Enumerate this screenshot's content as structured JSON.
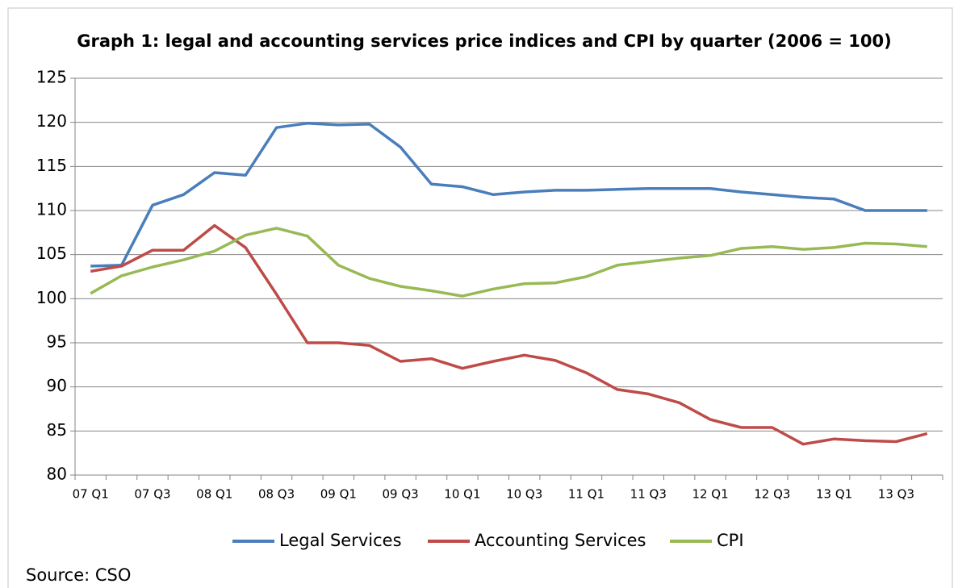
{
  "chart_data": {
    "type": "line",
    "title": "Graph 1: legal and accounting services price indices and CPI by quarter (2006 = 100)",
    "source": "Source: CSO",
    "categories": [
      "07 Q1",
      null,
      "07 Q3",
      null,
      "08 Q1",
      null,
      "08 Q3",
      null,
      "09 Q1",
      null,
      "09 Q3",
      null,
      "10 Q1",
      null,
      "10 Q3",
      null,
      "11 Q1",
      null,
      "11 Q3",
      null,
      "12 Q1",
      null,
      "12 Q3",
      null,
      "13 Q1",
      null,
      "13 Q3",
      null
    ],
    "series": [
      {
        "name": "Legal Services",
        "color": "#4a7ebb",
        "values": [
          103.7,
          103.8,
          110.6,
          111.8,
          114.3,
          114.0,
          119.4,
          119.9,
          119.7,
          119.8,
          117.2,
          113.0,
          112.7,
          111.8,
          112.1,
          112.3,
          112.3,
          112.4,
          112.5,
          112.5,
          112.5,
          112.1,
          111.8,
          111.5,
          111.3,
          110.0,
          110.0,
          110.0
        ]
      },
      {
        "name": "Accounting Services",
        "color": "#be4b48",
        "values": [
          103.1,
          103.7,
          105.5,
          105.5,
          108.3,
          105.8,
          100.5,
          95.0,
          95.0,
          94.7,
          92.9,
          93.2,
          92.1,
          92.9,
          93.6,
          93.0,
          91.6,
          89.7,
          89.2,
          88.2,
          86.3,
          85.4,
          85.4,
          83.5,
          84.1,
          83.9,
          83.8,
          84.7
        ]
      },
      {
        "name": "CPI",
        "color": "#98b954",
        "values": [
          100.6,
          102.6,
          103.6,
          104.4,
          105.4,
          107.2,
          108.0,
          107.1,
          103.8,
          102.3,
          101.4,
          100.9,
          100.3,
          101.1,
          101.7,
          101.8,
          102.5,
          103.8,
          104.2,
          104.6,
          104.9,
          105.7,
          105.9,
          105.6,
          105.8,
          106.3,
          106.2,
          105.9
        ]
      }
    ],
    "ylim": [
      80,
      125
    ],
    "yticks": [
      80,
      85,
      90,
      95,
      100,
      105,
      110,
      115,
      120,
      125
    ],
    "grid": true
  }
}
